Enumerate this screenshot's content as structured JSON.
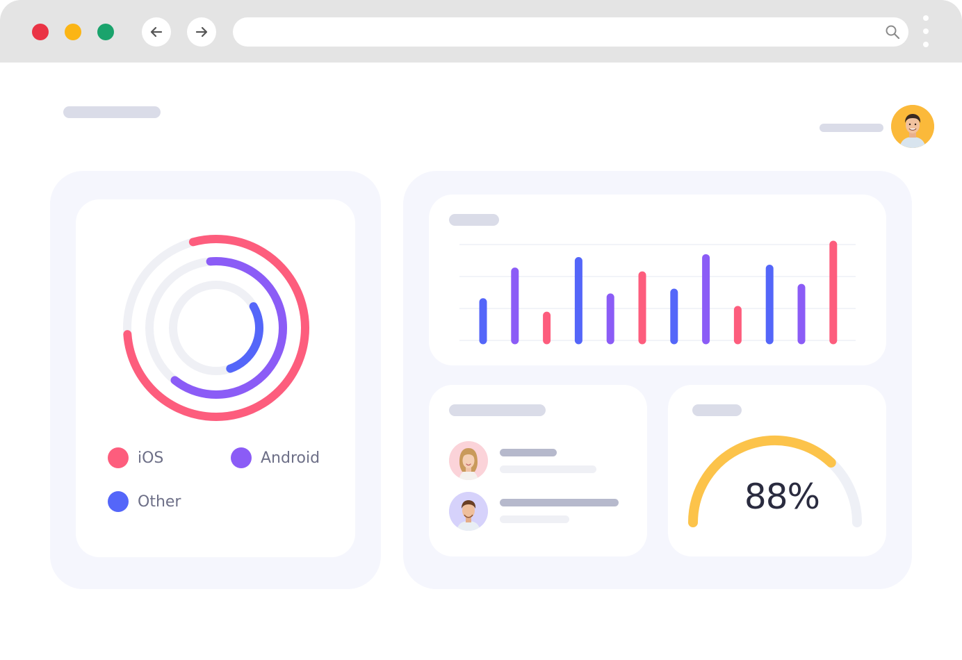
{
  "colors": {
    "chrome": "#e4e4e4",
    "close": "#ea3345",
    "minimize": "#fbb515",
    "maximize": "#1aa36c",
    "ios": "#fd5d7d",
    "android": "#8b5cf6",
    "other": "#5466f9",
    "gauge": "#fcc34a",
    "skeleton": "#dadce8",
    "card_bg": "#f5f6fd"
  },
  "browser": {
    "back_icon": "arrow-left-icon",
    "forward_icon": "arrow-right-icon",
    "search_icon": "search-icon",
    "menu_icon": "kebab-menu-icon",
    "url": ""
  },
  "legend": [
    {
      "label": "iOS",
      "color": "#fd5d7d"
    },
    {
      "label": "Android",
      "color": "#8b5cf6"
    },
    {
      "label": "Other",
      "color": "#5466f9"
    }
  ],
  "chart_data": {
    "type": "bar",
    "title": "",
    "xlabel": "",
    "ylabel": "",
    "grid": true,
    "ylim": [
      0,
      100
    ],
    "values": [
      40,
      72,
      26,
      83,
      45,
      68,
      50,
      86,
      32,
      75,
      55,
      100
    ],
    "colors": [
      "#5466f9",
      "#8b5cf6",
      "#fd5d7d",
      "#5466f9",
      "#8b5cf6",
      "#fd5d7d",
      "#5466f9",
      "#8b5cf6",
      "#fd5d7d",
      "#5466f9",
      "#8b5cf6",
      "#fd5d7d"
    ]
  },
  "donut": {
    "ios_share": 0.78,
    "android_share": 0.62,
    "other_share": 0.28
  },
  "gauge": {
    "value": 0.88,
    "label": "88%"
  }
}
